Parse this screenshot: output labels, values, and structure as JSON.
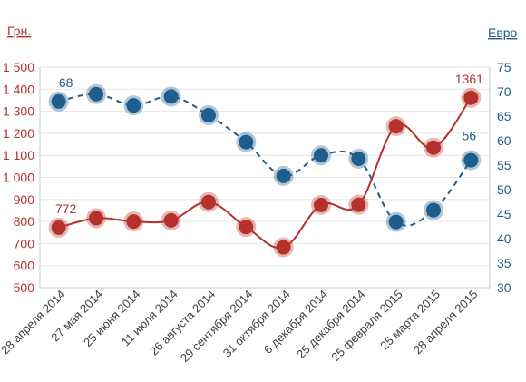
{
  "chart_data": {
    "type": "line",
    "colors": {
      "uah": "#b7312c",
      "eur": "#1f5d8c",
      "grid": "#e6e6e6"
    },
    "left_axis": {
      "unit_label": "Грн.",
      "range": [
        500,
        1500
      ],
      "ticks": [
        "500",
        "600",
        "700",
        "800",
        "900",
        "1 000",
        "1 100",
        "1 200",
        "1 300",
        "1 400",
        "1 500"
      ]
    },
    "right_axis": {
      "unit_label": "Евро",
      "range": [
        30,
        75
      ],
      "ticks": [
        "30",
        "35",
        "40",
        "45",
        "50",
        "55",
        "60",
        "65",
        "70",
        "75"
      ]
    },
    "categories": [
      "28 апреля 2014",
      "27 мая 2014",
      "25 июня 2014",
      "11 июля 2014",
      "26 августа 2014",
      "29 сентября 2014",
      "31 октября 2014",
      "6 декабря 2014",
      "25 декабря 2014",
      "25 февраля 2015",
      "25 марта 2015",
      "28 апреля 2015"
    ],
    "series": [
      {
        "key": "uah",
        "axis": "left",
        "style": "solid",
        "values": [
          772,
          815,
          800,
          805,
          888,
          775,
          683,
          875,
          876,
          1232,
          1135,
          1361
        ],
        "labels": [
          {
            "index": 0,
            "text": "772"
          },
          {
            "index": 11,
            "text": "1361"
          }
        ]
      },
      {
        "key": "eur",
        "axis": "right",
        "style": "dashed",
        "values": [
          68,
          69.5,
          67.2,
          69,
          65.2,
          59.7,
          52.8,
          57,
          56.3,
          43.4,
          45.8,
          56
        ],
        "labels": [
          {
            "index": 0,
            "text": "68"
          },
          {
            "index": 11,
            "text": "56"
          }
        ]
      }
    ],
    "grid": true,
    "legend": "none"
  }
}
